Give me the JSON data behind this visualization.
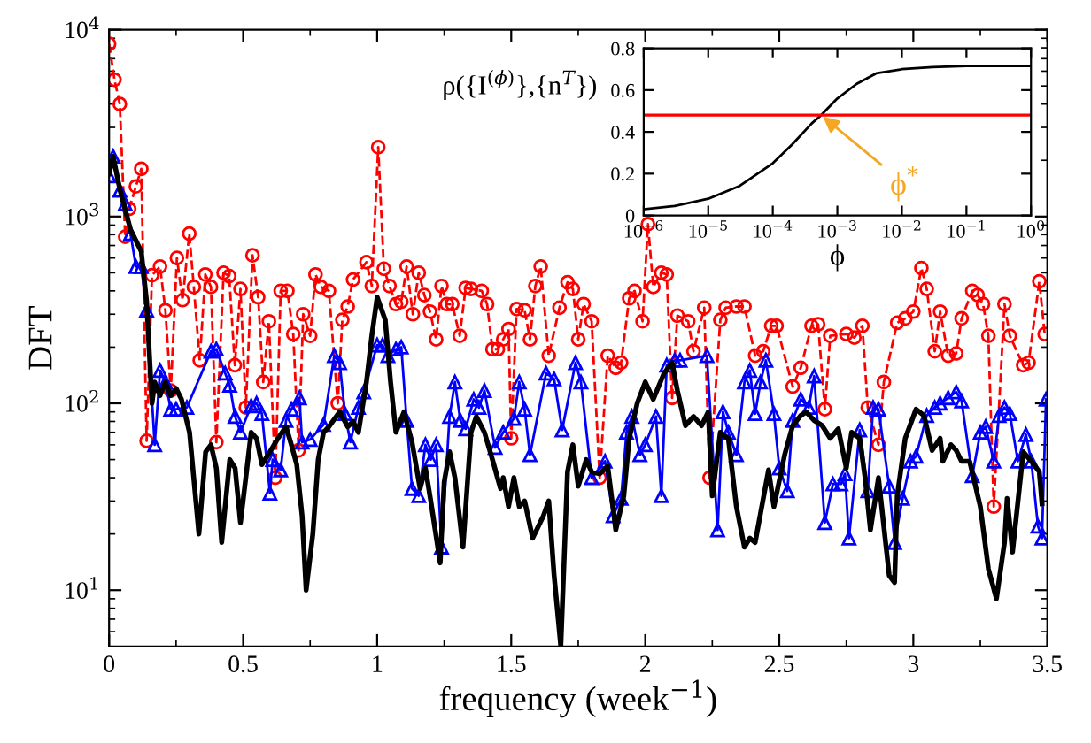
{
  "chart_data": [
    {
      "type": "line",
      "xlabel": "frequency (week$^{−1}$)",
      "ylabel": "DFT",
      "log": "y",
      "xlim": [
        0,
        3.5
      ],
      "ylim": [
        5,
        10000
      ],
      "xticks": [
        0,
        0.5,
        1,
        1.5,
        2,
        2.5,
        3,
        3.5
      ],
      "yticks": [
        {
          "value": 10,
          "label": "10$^{1}$"
        },
        {
          "value": 100,
          "label": "10$^{2}$"
        },
        {
          "value": 1000,
          "label": "10$^{3}$"
        },
        {
          "value": 10000,
          "label": "10$^{4}$"
        }
      ],
      "grid": false,
      "legend": false,
      "series": [
        {
          "color": "#ff0000",
          "marker": "circle",
          "line_style": "dashed",
          "x": [
            0,
            0.02,
            0.04,
            0.06,
            0.075,
            0.1,
            0.12,
            0.14,
            0.16,
            0.19,
            0.21,
            0.23,
            0.253,
            0.274,
            0.299,
            0.316,
            0.338,
            0.359,
            0.38,
            0.4,
            0.427,
            0.448,
            0.469,
            0.49,
            0.51,
            0.535,
            0.556,
            0.575,
            0.596,
            0.62,
            0.64,
            0.665,
            0.687,
            0.707,
            0.724,
            0.75,
            0.77,
            0.79,
            0.82,
            0.853,
            0.87,
            0.89,
            0.91,
            0.96,
            0.98,
            1.004,
            1.025,
            1.046,
            1.07,
            1.09,
            1.11,
            1.133,
            1.155,
            1.176,
            1.197,
            1.22,
            1.24,
            1.26,
            1.28,
            1.308,
            1.33,
            1.35,
            1.39,
            1.41,
            1.43,
            1.45,
            1.47,
            1.49,
            1.5,
            1.52,
            1.55,
            1.57,
            1.59,
            1.61,
            1.64,
            1.68,
            1.71,
            1.73,
            1.75,
            1.77,
            1.8,
            1.83,
            1.86,
            1.89,
            1.91,
            1.94,
            1.96,
            1.99,
            2.01,
            2.03,
            2.06,
            2.08,
            2.1,
            2.12,
            2.16,
            2.18,
            2.22,
            2.24,
            2.28,
            2.3,
            2.34,
            2.37,
            2.41,
            2.44,
            2.47,
            2.49,
            2.55,
            2.58,
            2.62,
            2.645,
            2.67,
            2.69,
            2.75,
            2.78,
            2.81,
            2.83,
            2.87,
            2.89,
            2.94,
            2.97,
            3.0,
            3.03,
            3.05,
            3.08,
            3.1,
            3.13,
            3.16,
            3.18,
            3.22,
            3.24,
            3.26,
            3.28,
            3.3,
            3.34,
            3.36,
            3.41,
            3.43,
            3.47,
            3.49
          ],
          "values": [
            8400,
            5400,
            4000,
            780,
            1100,
            1450,
            1800,
            63,
            485,
            540,
            315,
            117,
            600,
            357,
            810,
            420,
            170,
            490,
            420,
            62,
            500,
            480,
            160,
            410,
            95,
            620,
            370,
            130,
            275,
            40,
            400,
            400,
            235,
            56,
            300,
            230,
            490,
            420,
            400,
            100,
            280,
            330,
            460,
            570,
            425,
            2350,
            525,
            425,
            340,
            350,
            540,
            300,
            500,
            380,
            310,
            220,
            425,
            340,
            340,
            230,
            415,
            410,
            400,
            340,
            195,
            195,
            220,
            250,
            65,
            320,
            315,
            220,
            425,
            540,
            180,
            325,
            445,
            410,
            220,
            340,
            275,
            40,
            180,
            155,
            165,
            365,
            400,
            275,
            910,
            420,
            500,
            490,
            107,
            295,
            275,
            190,
            325,
            40,
            280,
            325,
            330,
            330,
            180,
            190,
            260,
            260,
            123,
            155,
            260,
            265,
            93,
            230,
            235,
            225,
            260,
            95,
            60,
            130,
            270,
            285,
            310,
            530,
            410,
            190,
            310,
            180,
            185,
            285,
            400,
            380,
            340,
            230,
            28,
            340,
            230,
            160,
            165,
            450,
            235
          ]
        },
        {
          "color": "#0000ff",
          "marker": "triangle",
          "line_style": "solid",
          "x": [
            0,
            0.015,
            0.04,
            0.06,
            0.08,
            0.1,
            0.12,
            0.14,
            0.17,
            0.19,
            0.21,
            0.23,
            0.25,
            0.29,
            0.38,
            0.4,
            0.433,
            0.45,
            0.47,
            0.49,
            0.53,
            0.55,
            0.57,
            0.6,
            0.61,
            0.64,
            0.66,
            0.68,
            0.71,
            0.72,
            0.75,
            0.8,
            0.84,
            0.86,
            0.88,
            0.9,
            0.93,
            0.95,
            1.0,
            1.02,
            1.04,
            1.07,
            1.09,
            1.11,
            1.13,
            1.155,
            1.18,
            1.2,
            1.22,
            1.24,
            1.27,
            1.29,
            1.31,
            1.33,
            1.36,
            1.38,
            1.4,
            1.44,
            1.47,
            1.51,
            1.53,
            1.55,
            1.57,
            1.63,
            1.66,
            1.69,
            1.74,
            1.76,
            1.8,
            1.85,
            1.88,
            1.91,
            1.93,
            1.95,
            1.98,
            2.0,
            2.04,
            2.06,
            2.08,
            2.11,
            2.13,
            2.23,
            2.27,
            2.29,
            2.31,
            2.34,
            2.37,
            2.39,
            2.41,
            2.43,
            2.45,
            2.48,
            2.5,
            2.53,
            2.55,
            2.58,
            2.61,
            2.63,
            2.67,
            2.7,
            2.73,
            2.745,
            2.76,
            2.8,
            2.83,
            2.85,
            2.87,
            2.91,
            2.93,
            2.96,
            2.99,
            3.01,
            3.05,
            3.08,
            3.1,
            3.13,
            3.16,
            3.18,
            3.22,
            3.25,
            3.27,
            3.3,
            3.32,
            3.34,
            3.36,
            3.39,
            3.42,
            3.44,
            3.465,
            3.48,
            3.495
          ],
          "values": [
            1650,
            2100,
            1380,
            1170,
            810,
            540,
            540,
            315,
            60,
            150,
            130,
            93,
            93,
            95,
            190,
            195,
            145,
            125,
            85,
            70,
            97,
            100,
            88,
            33,
            50,
            44,
            81,
            93,
            107,
            62,
            64,
            77,
            180,
            165,
            88,
            62,
            95,
            115,
            205,
            205,
            180,
            195,
            200,
            81,
            35,
            32,
            60,
            50,
            60,
            17,
            85,
            130,
            81,
            73,
            105,
            95,
            117,
            58,
            70,
            83,
            130,
            93,
            53,
            145,
            135,
            72,
            165,
            130,
            40,
            49,
            25,
            31,
            70,
            85,
            53,
            60,
            85,
            32,
            160,
            170,
            170,
            180,
            21,
            90,
            70,
            53,
            130,
            150,
            88,
            130,
            170,
            88,
            45,
            34,
            81,
            105,
            95,
            140,
            23,
            37,
            37,
            42,
            19,
            72,
            34,
            95,
            93,
            36,
            18,
            31,
            49,
            52,
            86,
            95,
            100,
            107,
            115,
            103,
            41,
            70,
            75,
            49,
            86,
            95,
            88,
            49,
            68,
            49,
            22,
            19,
            105
          ]
        },
        {
          "color": "#000000",
          "marker": "none",
          "line_style": "solid",
          "x": [
            0,
            0.015,
            0.04,
            0.08,
            0.12,
            0.14,
            0.16,
            0.17,
            0.19,
            0.21,
            0.23,
            0.25,
            0.27,
            0.3,
            0.335,
            0.36,
            0.38,
            0.4,
            0.42,
            0.45,
            0.47,
            0.49,
            0.53,
            0.55,
            0.57,
            0.6,
            0.63,
            0.66,
            0.68,
            0.7,
            0.72,
            0.735,
            0.76,
            0.78,
            0.8,
            0.82,
            0.86,
            0.89,
            0.91,
            0.93,
            0.96,
            0.98,
            1.0,
            1.03,
            1.05,
            1.07,
            1.1,
            1.13,
            1.16,
            1.18,
            1.2,
            1.235,
            1.25,
            1.27,
            1.29,
            1.32,
            1.35,
            1.37,
            1.4,
            1.43,
            1.46,
            1.47,
            1.49,
            1.51,
            1.53,
            1.55,
            1.58,
            1.62,
            1.64,
            1.66,
            1.685,
            1.71,
            1.73,
            1.75,
            1.78,
            1.8,
            1.83,
            1.86,
            1.89,
            1.92,
            1.94,
            1.97,
            2.0,
            2.03,
            2.07,
            2.1,
            2.12,
            2.15,
            2.18,
            2.21,
            2.235,
            2.25,
            2.28,
            2.31,
            2.34,
            2.37,
            2.39,
            2.41,
            2.46,
            2.48,
            2.52,
            2.55,
            2.58,
            2.6,
            2.63,
            2.66,
            2.69,
            2.72,
            2.75,
            2.77,
            2.8,
            2.82,
            2.84,
            2.87,
            2.91,
            2.93,
            2.94,
            2.97,
            3.01,
            3.04,
            3.07,
            3.1,
            3.11,
            3.14,
            3.16,
            3.18,
            3.21,
            3.25,
            3.28,
            3.31,
            3.34,
            3.35,
            3.37,
            3.41,
            3.44,
            3.47,
            3.48
          ],
          "values": [
            1700,
            2100,
            1400,
            850,
            650,
            350,
            100,
            130,
            110,
            130,
            110,
            120,
            105,
            70,
            20,
            55,
            60,
            45,
            18,
            50,
            45,
            23,
            70,
            65,
            47,
            55,
            65,
            75,
            60,
            47,
            25,
            10,
            20,
            50,
            70,
            75,
            90,
            75,
            80,
            70,
            130,
            230,
            370,
            280,
            130,
            70,
            90,
            62,
            35,
            45,
            30,
            14,
            38,
            55,
            40,
            17,
            70,
            85,
            70,
            50,
            35,
            40,
            28,
            40,
            28,
            30,
            19,
            25,
            30,
            12,
            5,
            43,
            60,
            36,
            50,
            43,
            42,
            46,
            21,
            32,
            65,
            100,
            130,
            105,
            145,
            165,
            117,
            76,
            85,
            76,
            90,
            32,
            70,
            65,
            28,
            17,
            19,
            18,
            44,
            28,
            53,
            76,
            86,
            90,
            81,
            76,
            65,
            73,
            45,
            70,
            65,
            40,
            21,
            40,
            12,
            11,
            32,
            65,
            93,
            86,
            56,
            65,
            49,
            60,
            56,
            49,
            49,
            28,
            13,
            9,
            18,
            31,
            16,
            55,
            49,
            43,
            29
          ]
        }
      ]
    },
    {
      "type": "line",
      "xlabel": "ϕ",
      "ylabel": "ρ({I$^{(ϕ)}$},{n$^{T}$})",
      "log": "x",
      "xlim": [
        1e-06,
        1
      ],
      "ylim": [
        0,
        0.8
      ],
      "xticks": [
        {
          "value": 1e-06,
          "label": "10$^{−6}$"
        },
        {
          "value": 1e-05,
          "label": "10$^{−5}$"
        },
        {
          "value": 0.0001,
          "label": "10$^{−4}$"
        },
        {
          "value": 0.001,
          "label": "10$^{−3}$"
        },
        {
          "value": 0.01,
          "label": "10$^{−2}$"
        },
        {
          "value": 0.1,
          "label": "10$^{−1}$"
        },
        {
          "value": 1,
          "label": "10$^{0}$"
        }
      ],
      "yticks": [
        0,
        0.2,
        0.4,
        0.6,
        0.8
      ],
      "grid": false,
      "legend": false,
      "ref_lines": [
        {
          "axis": "y",
          "value": 0.48,
          "color": "#ff0000"
        }
      ],
      "annotations": [
        {
          "text": "ϕ$^{*}$",
          "x": 0.00056,
          "y": 0.48
        }
      ],
      "series": [
        {
          "color": "#000000",
          "marker": "none",
          "line_style": "solid",
          "x": [
            1e-06,
            3e-06,
            1e-05,
            3e-05,
            0.0001,
            0.0002,
            0.0004,
            0.00056,
            0.001,
            0.002,
            0.004,
            0.01,
            0.03,
            0.1,
            1
          ],
          "values": [
            0.03,
            0.045,
            0.08,
            0.14,
            0.25,
            0.34,
            0.44,
            0.48,
            0.56,
            0.63,
            0.68,
            0.7,
            0.71,
            0.715,
            0.715
          ]
        }
      ]
    }
  ]
}
